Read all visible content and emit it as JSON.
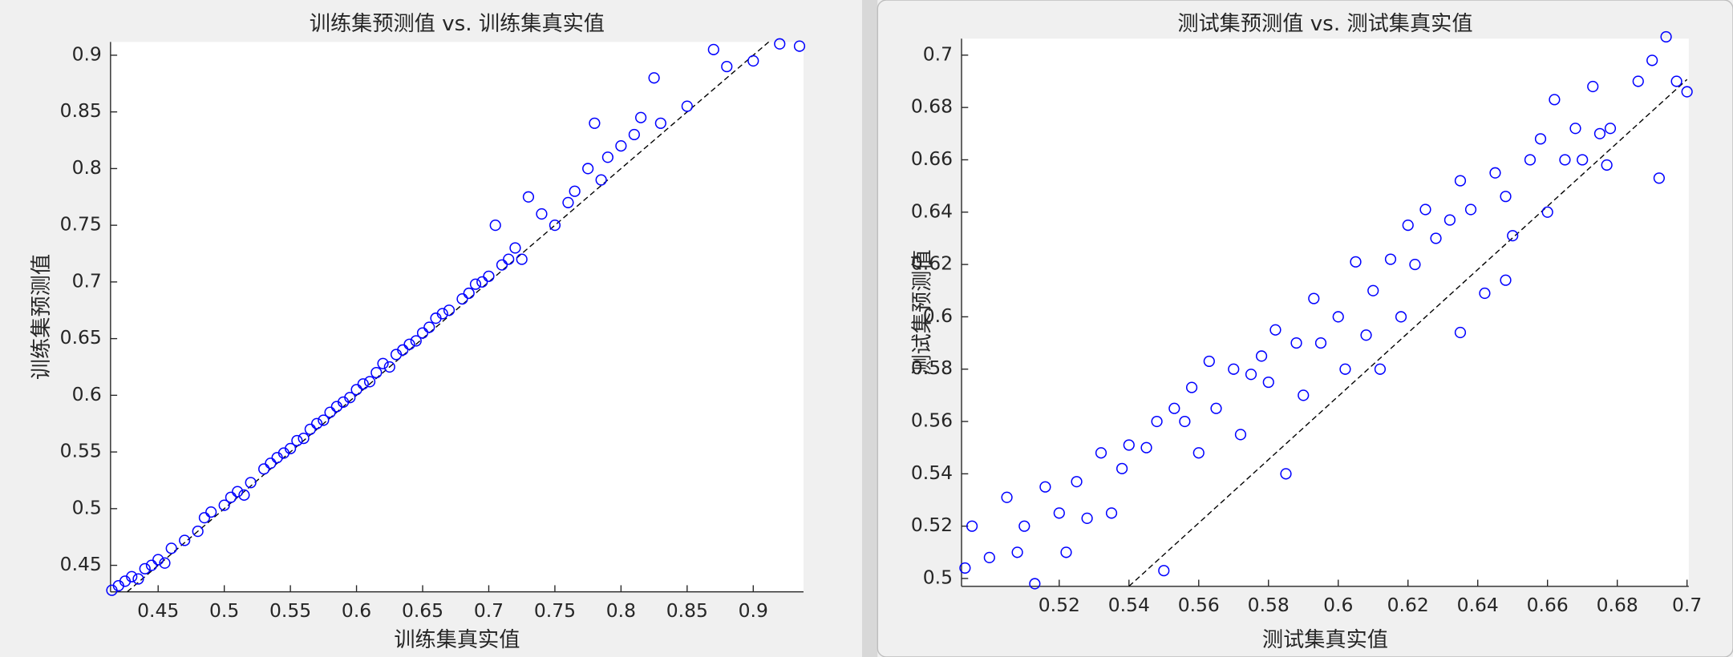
{
  "chart_data": [
    {
      "type": "scatter",
      "title": "训练集预测值 vs. 训练集真实值",
      "x_label": "训练集真实值",
      "y_label": "训练集预测值",
      "x": [
        0.415,
        0.42,
        0.425,
        0.43,
        0.435,
        0.44,
        0.445,
        0.45,
        0.455,
        0.46,
        0.47,
        0.48,
        0.485,
        0.49,
        0.5,
        0.505,
        0.51,
        0.515,
        0.52,
        0.53,
        0.535,
        0.54,
        0.545,
        0.55,
        0.555,
        0.56,
        0.565,
        0.57,
        0.575,
        0.58,
        0.585,
        0.59,
        0.595,
        0.6,
        0.605,
        0.61,
        0.615,
        0.62,
        0.625,
        0.63,
        0.635,
        0.64,
        0.645,
        0.65,
        0.655,
        0.66,
        0.665,
        0.67,
        0.68,
        0.685,
        0.69,
        0.695,
        0.7,
        0.705,
        0.71,
        0.715,
        0.72,
        0.725,
        0.73,
        0.74,
        0.75,
        0.76,
        0.765,
        0.775,
        0.78,
        0.785,
        0.79,
        0.8,
        0.81,
        0.815,
        0.825,
        0.83,
        0.85,
        0.87,
        0.88,
        0.9,
        0.92,
        0.935
      ],
      "series": [
        {
          "color": "#0000ff",
          "values": [
            0.428,
            0.432,
            0.436,
            0.44,
            0.438,
            0.447,
            0.45,
            0.455,
            0.452,
            0.465,
            0.472,
            0.48,
            0.492,
            0.497,
            0.503,
            0.51,
            0.515,
            0.512,
            0.523,
            0.535,
            0.54,
            0.545,
            0.549,
            0.553,
            0.56,
            0.562,
            0.57,
            0.575,
            0.578,
            0.585,
            0.59,
            0.594,
            0.598,
            0.605,
            0.61,
            0.612,
            0.62,
            0.628,
            0.625,
            0.636,
            0.64,
            0.645,
            0.648,
            0.655,
            0.66,
            0.668,
            0.672,
            0.675,
            0.685,
            0.69,
            0.698,
            0.7,
            0.705,
            0.75,
            0.715,
            0.72,
            0.73,
            0.72,
            0.775,
            0.76,
            0.75,
            0.77,
            0.78,
            0.8,
            0.84,
            0.79,
            0.81,
            0.82,
            0.83,
            0.845,
            0.88,
            0.84,
            0.855,
            0.905,
            0.89,
            0.895,
            0.91,
            0.908
          ]
        }
      ],
      "reference_line": {
        "x": [
          0.4266,
          0.9117
        ],
        "y": [
          0.4266,
          0.9117
        ],
        "color": "#000000"
      },
      "xlim": [
        0.414,
        0.938
      ],
      "ylim": [
        0.4266,
        0.9117
      ],
      "xticks": [
        0.45,
        0.5,
        0.55,
        0.6,
        0.65,
        0.7,
        0.75,
        0.8,
        0.85,
        0.9
      ],
      "yticks": [
        0.45,
        0.5,
        0.55,
        0.6,
        0.65,
        0.7,
        0.75,
        0.8,
        0.85,
        0.9
      ]
    },
    {
      "type": "scatter",
      "title": "测试集预测值 vs. 测试集真实值",
      "x_label": "测试集真实值",
      "y_label": "测试集预测值",
      "x": [
        0.493,
        0.495,
        0.5,
        0.505,
        0.508,
        0.51,
        0.513,
        0.516,
        0.52,
        0.522,
        0.525,
        0.528,
        0.532,
        0.535,
        0.538,
        0.54,
        0.545,
        0.548,
        0.55,
        0.553,
        0.556,
        0.558,
        0.56,
        0.563,
        0.565,
        0.57,
        0.572,
        0.575,
        0.578,
        0.58,
        0.582,
        0.585,
        0.588,
        0.59,
        0.593,
        0.595,
        0.6,
        0.602,
        0.605,
        0.608,
        0.61,
        0.612,
        0.615,
        0.618,
        0.62,
        0.622,
        0.625,
        0.628,
        0.632,
        0.635,
        0.635,
        0.638,
        0.642,
        0.645,
        0.648,
        0.648,
        0.65,
        0.655,
        0.658,
        0.66,
        0.662,
        0.665,
        0.668,
        0.67,
        0.673,
        0.675,
        0.677,
        0.678,
        0.686,
        0.69,
        0.692,
        0.694,
        0.697,
        0.7
      ],
      "series": [
        {
          "color": "#0000ff",
          "values": [
            0.504,
            0.52,
            0.508,
            0.531,
            0.51,
            0.52,
            0.498,
            0.535,
            0.525,
            0.51,
            0.537,
            0.523,
            0.548,
            0.525,
            0.542,
            0.551,
            0.55,
            0.56,
            0.503,
            0.565,
            0.56,
            0.573,
            0.548,
            0.583,
            0.565,
            0.58,
            0.555,
            0.578,
            0.585,
            0.575,
            0.595,
            0.54,
            0.59,
            0.57,
            0.607,
            0.59,
            0.6,
            0.58,
            0.621,
            0.593,
            0.61,
            0.58,
            0.622,
            0.6,
            0.635,
            0.62,
            0.641,
            0.63,
            0.637,
            0.594,
            0.652,
            0.641,
            0.609,
            0.655,
            0.614,
            0.646,
            0.631,
            0.66,
            0.668,
            0.64,
            0.683,
            0.66,
            0.672,
            0.66,
            0.688,
            0.67,
            0.658,
            0.672,
            0.69,
            0.698,
            0.653,
            0.707,
            0.69,
            0.686
          ]
        }
      ],
      "reference_line": {
        "x": [
          0.54,
          0.7
        ],
        "y": [
          0.497,
          0.6907
        ],
        "color": "#000000"
      },
      "xlim": [
        0.492,
        0.7005
      ],
      "ylim": [
        0.497,
        0.7063
      ],
      "xticks": [
        0.52,
        0.54,
        0.56,
        0.58,
        0.6,
        0.62,
        0.64,
        0.66,
        0.68,
        0.7
      ],
      "yticks": [
        0.5,
        0.52,
        0.54,
        0.56,
        0.58,
        0.6,
        0.62,
        0.64,
        0.66,
        0.68,
        0.7
      ]
    }
  ]
}
